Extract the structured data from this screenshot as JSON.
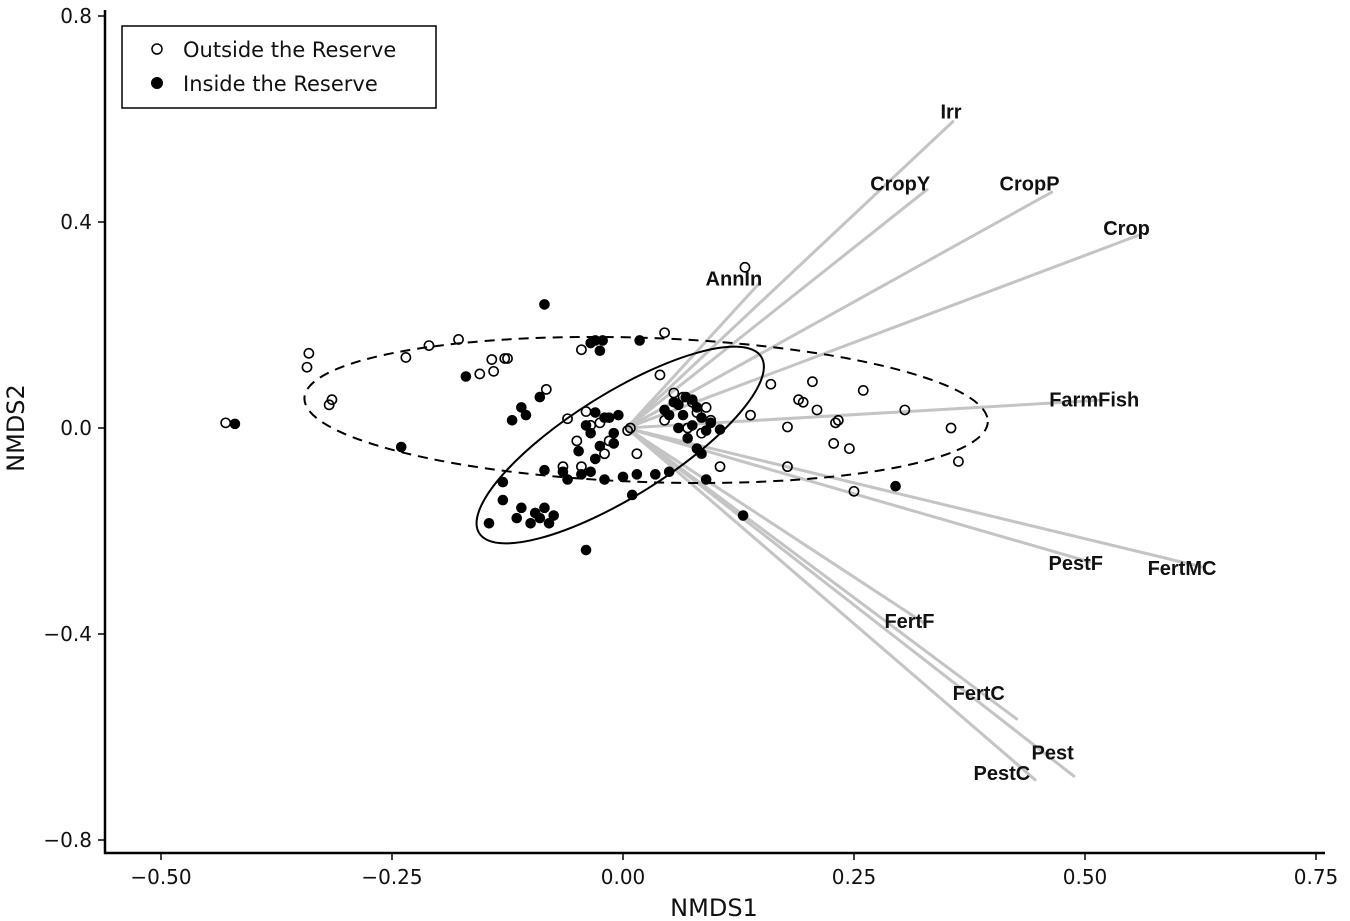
{
  "chart_data": {
    "type": "scatter",
    "title": "",
    "xlabel": "NMDS1",
    "ylabel": "NMDS2",
    "xlim": [
      -0.56,
      0.755
    ],
    "ylim": [
      -0.83,
      0.82
    ],
    "x_ticks": [
      -0.5,
      -0.25,
      0.0,
      0.25,
      0.5,
      0.75
    ],
    "x_tick_labels": [
      "−0.50",
      "−0.25",
      "0.00",
      "0.25",
      "0.50",
      "0.75"
    ],
    "y_ticks": [
      -0.8,
      -0.4,
      0.0,
      0.4,
      0.8
    ],
    "y_tick_labels": [
      "−0.8",
      "−0.4",
      "0.0",
      "0.4",
      "0.8"
    ],
    "grid": false,
    "legend_position": "top-left",
    "legend": [
      {
        "label": "Outside the Reserve",
        "marker": "open-circle"
      },
      {
        "label": "Inside the Reserve",
        "marker": "filled-circle"
      }
    ],
    "series": [
      {
        "name": "Outside the Reserve",
        "marker": "open-circle",
        "points": [
          [
            -0.43,
            0.01
          ],
          [
            -0.34,
            0.145
          ],
          [
            -0.342,
            0.118
          ],
          [
            -0.315,
            0.055
          ],
          [
            -0.318,
            0.045
          ],
          [
            -0.235,
            0.137
          ],
          [
            -0.21,
            0.16
          ],
          [
            -0.178,
            0.172
          ],
          [
            -0.155,
            0.105
          ],
          [
            -0.14,
            0.11
          ],
          [
            -0.142,
            0.133
          ],
          [
            -0.128,
            0.135
          ],
          [
            -0.125,
            0.135
          ],
          [
            -0.083,
            0.075
          ],
          [
            -0.045,
            0.152
          ],
          [
            0.045,
            0.185
          ],
          [
            0.04,
            0.103
          ],
          [
            0.132,
            0.312
          ],
          [
            0.008,
            0.0
          ],
          [
            0.005,
            -0.005
          ],
          [
            -0.06,
            0.018
          ],
          [
            -0.05,
            -0.025
          ],
          [
            -0.04,
            0.032
          ],
          [
            -0.035,
            0.005
          ],
          [
            -0.025,
            0.01
          ],
          [
            -0.045,
            -0.075
          ],
          [
            -0.02,
            -0.05
          ],
          [
            -0.065,
            -0.075
          ],
          [
            -0.015,
            -0.025
          ],
          [
            0.015,
            -0.05
          ],
          [
            0.055,
            0.068
          ],
          [
            0.065,
            0.06
          ],
          [
            0.075,
            0.05
          ],
          [
            0.08,
            0.03
          ],
          [
            0.09,
            0.04
          ],
          [
            0.095,
            0.015
          ],
          [
            0.07,
            0.0
          ],
          [
            0.085,
            -0.01
          ],
          [
            0.045,
            0.015
          ],
          [
            0.16,
            0.085
          ],
          [
            0.19,
            0.055
          ],
          [
            0.195,
            0.05
          ],
          [
            0.205,
            0.09
          ],
          [
            0.21,
            0.035
          ],
          [
            0.26,
            0.073
          ],
          [
            0.138,
            0.025
          ],
          [
            0.178,
            0.002
          ],
          [
            0.23,
            0.01
          ],
          [
            0.233,
            0.015
          ],
          [
            0.228,
            -0.03
          ],
          [
            0.245,
            -0.04
          ],
          [
            0.305,
            0.035
          ],
          [
            0.355,
            0.0
          ],
          [
            0.363,
            -0.065
          ],
          [
            0.178,
            -0.075
          ],
          [
            0.105,
            -0.075
          ],
          [
            0.25,
            -0.123
          ]
        ]
      },
      {
        "name": "Inside the Reserve",
        "marker": "filled-circle",
        "points": [
          [
            -0.42,
            0.008
          ],
          [
            -0.24,
            -0.037
          ],
          [
            -0.17,
            0.1
          ],
          [
            -0.085,
            0.24
          ],
          [
            -0.035,
            0.165
          ],
          [
            -0.03,
            0.17
          ],
          [
            -0.022,
            0.17
          ],
          [
            -0.025,
            0.15
          ],
          [
            0.018,
            0.17
          ],
          [
            -0.11,
            0.04
          ],
          [
            -0.105,
            0.025
          ],
          [
            -0.12,
            0.015
          ],
          [
            -0.09,
            0.06
          ],
          [
            -0.048,
            -0.045
          ],
          [
            -0.085,
            -0.082
          ],
          [
            -0.03,
            0.03
          ],
          [
            -0.02,
            0.02
          ],
          [
            -0.035,
            -0.01
          ],
          [
            -0.025,
            -0.035
          ],
          [
            -0.01,
            -0.01
          ],
          [
            -0.015,
            0.02
          ],
          [
            -0.04,
            0.005
          ],
          [
            -0.005,
            0.025
          ],
          [
            -0.01,
            -0.03
          ],
          [
            -0.03,
            -0.06
          ],
          [
            -0.035,
            -0.085
          ],
          [
            -0.02,
            -0.1
          ],
          [
            0.0,
            -0.095
          ],
          [
            0.01,
            -0.13
          ],
          [
            0.015,
            -0.09
          ],
          [
            0.035,
            -0.09
          ],
          [
            0.05,
            -0.085
          ],
          [
            -0.06,
            -0.1
          ],
          [
            -0.065,
            -0.085
          ],
          [
            -0.045,
            -0.09
          ],
          [
            -0.13,
            -0.105
          ],
          [
            -0.13,
            -0.14
          ],
          [
            -0.11,
            -0.155
          ],
          [
            -0.115,
            -0.175
          ],
          [
            -0.095,
            -0.165
          ],
          [
            -0.09,
            -0.175
          ],
          [
            -0.085,
            -0.155
          ],
          [
            -0.075,
            -0.17
          ],
          [
            -0.08,
            -0.185
          ],
          [
            -0.1,
            -0.185
          ],
          [
            -0.145,
            -0.185
          ],
          [
            -0.04,
            -0.237
          ],
          [
            0.045,
            0.035
          ],
          [
            0.055,
            0.05
          ],
          [
            0.06,
            0.045
          ],
          [
            0.068,
            0.06
          ],
          [
            0.075,
            0.055
          ],
          [
            0.05,
            0.025
          ],
          [
            0.065,
            0.025
          ],
          [
            0.08,
            0.04
          ],
          [
            0.085,
            0.02
          ],
          [
            0.06,
            0.0
          ],
          [
            0.07,
            -0.02
          ],
          [
            0.075,
            0.005
          ],
          [
            0.09,
            -0.005
          ],
          [
            0.095,
            0.01
          ],
          [
            0.105,
            -0.003
          ],
          [
            0.08,
            -0.04
          ],
          [
            0.085,
            -0.05
          ],
          [
            0.09,
            -0.1
          ],
          [
            0.13,
            -0.17
          ],
          [
            0.295,
            -0.113
          ]
        ]
      }
    ],
    "ellipses": [
      {
        "name": "Outside the Reserve",
        "style": "dashed",
        "cx": 0.025,
        "cy": 0.035,
        "rx": 0.37,
        "ry": 0.14,
        "angle_deg": -2
      },
      {
        "name": "Inside the Reserve",
        "style": "solid",
        "cx": -0.003,
        "cy": -0.033,
        "rx": 0.18,
        "ry": 0.1,
        "angle_deg": 32
      }
    ],
    "vectors": [
      {
        "label": "Irr",
        "x": 0.357,
        "y": 0.595,
        "label_x": 0.355,
        "label_y": 0.615
      },
      {
        "label": "CropY",
        "x": 0.329,
        "y": 0.463,
        "label_x": 0.3,
        "label_y": 0.475
      },
      {
        "label": "CropP",
        "x": 0.464,
        "y": 0.458,
        "label_x": 0.44,
        "label_y": 0.475
      },
      {
        "label": "Crop",
        "x": 0.559,
        "y": 0.375,
        "label_x": 0.545,
        "label_y": 0.388
      },
      {
        "label": "AnnIn",
        "x": 0.148,
        "y": 0.282,
        "label_x": 0.12,
        "label_y": 0.29
      },
      {
        "label": "FarmFish",
        "x": 0.517,
        "y": 0.054,
        "label_x": 0.51,
        "label_y": 0.055
      },
      {
        "label": "PestF",
        "x": 0.505,
        "y": -0.26,
        "label_x": 0.49,
        "label_y": -0.262
      },
      {
        "label": "FertMC",
        "x": 0.627,
        "y": -0.27,
        "label_x": 0.605,
        "label_y": -0.272
      },
      {
        "label": "FertF",
        "x": 0.327,
        "y": -0.38,
        "label_x": 0.31,
        "label_y": -0.375
      },
      {
        "label": "FertC",
        "x": 0.426,
        "y": -0.565,
        "label_x": 0.385,
        "label_y": -0.515
      },
      {
        "label": "Pest",
        "x": 0.488,
        "y": -0.676,
        "label_x": 0.465,
        "label_y": -0.63
      },
      {
        "label": "PestC",
        "x": 0.446,
        "y": -0.683,
        "label_x": 0.41,
        "label_y": -0.67
      }
    ],
    "vector_origin": [
      0.004,
      0.0
    ],
    "colors": {
      "axis": "#000000",
      "vector": "#c4c4c4",
      "point_stroke": "#000000",
      "background": "#ffffff"
    }
  }
}
